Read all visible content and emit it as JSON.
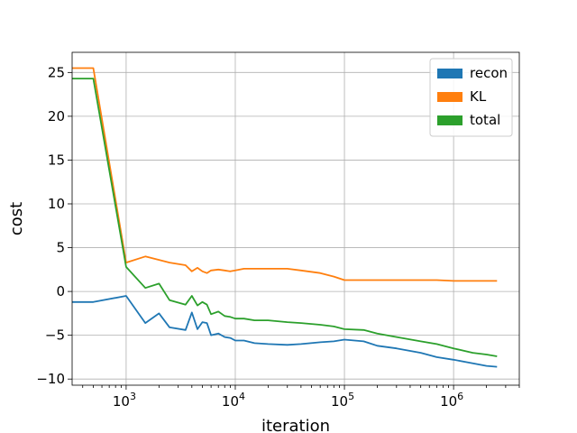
{
  "chart_data": {
    "type": "line",
    "title": "",
    "xlabel": "iteration",
    "ylabel": "cost",
    "x_scale": "log",
    "xlim": [
      320,
      4000000
    ],
    "ylim": [
      -10.7,
      27.3
    ],
    "grid": true,
    "legend_position": "top-right",
    "x_ticks": [
      {
        "value": 1000,
        "base": "10",
        "exp": "3"
      },
      {
        "value": 10000,
        "base": "10",
        "exp": "4"
      },
      {
        "value": 100000,
        "base": "10",
        "exp": "5"
      },
      {
        "value": 1000000,
        "base": "10",
        "exp": "6"
      }
    ],
    "y_ticks": [
      {
        "value": -10,
        "label": "−10"
      },
      {
        "value": -5,
        "label": "−5"
      },
      {
        "value": 0,
        "label": "0"
      },
      {
        "value": 5,
        "label": "5"
      },
      {
        "value": 10,
        "label": "10"
      },
      {
        "value": 15,
        "label": "15"
      },
      {
        "value": 20,
        "label": "20"
      },
      {
        "value": 25,
        "label": "25"
      }
    ],
    "series": [
      {
        "name": "recon",
        "color": "#1f77b4",
        "x": [
          300,
          500,
          1000,
          1500,
          2000,
          2500,
          3500,
          4000,
          4500,
          5000,
          5500,
          6000,
          7000,
          8000,
          9000,
          10000,
          12000,
          15000,
          20000,
          30000,
          40000,
          60000,
          80000,
          100000,
          150000,
          200000,
          300000,
          500000,
          700000,
          1000000,
          1500000,
          2000000,
          2500000
        ],
        "y": [
          -1.2,
          -1.2,
          -0.5,
          -3.6,
          -2.5,
          -4.1,
          -4.4,
          -2.4,
          -4.3,
          -3.5,
          -3.6,
          -5.0,
          -4.8,
          -5.2,
          -5.3,
          -5.6,
          -5.6,
          -5.9,
          -6.0,
          -6.1,
          -6.0,
          -5.8,
          -5.7,
          -5.5,
          -5.7,
          -6.2,
          -6.5,
          -7.0,
          -7.5,
          -7.8,
          -8.2,
          -8.5,
          -8.6
        ]
      },
      {
        "name": "KL",
        "color": "#ff7f0e",
        "x": [
          300,
          500,
          1000,
          1500,
          2000,
          2500,
          3500,
          4000,
          4500,
          5000,
          5500,
          6000,
          7000,
          8000,
          9000,
          10000,
          12000,
          15000,
          20000,
          30000,
          40000,
          60000,
          80000,
          100000,
          150000,
          200000,
          300000,
          500000,
          700000,
          1000000,
          1500000,
          2000000,
          2500000
        ],
        "y": [
          25.5,
          25.5,
          3.3,
          4.0,
          3.6,
          3.3,
          3.0,
          2.3,
          2.7,
          2.3,
          2.1,
          2.4,
          2.5,
          2.4,
          2.3,
          2.4,
          2.6,
          2.6,
          2.6,
          2.6,
          2.4,
          2.1,
          1.7,
          1.3,
          1.3,
          1.3,
          1.3,
          1.3,
          1.3,
          1.2,
          1.2,
          1.2,
          1.2
        ]
      },
      {
        "name": "total",
        "color": "#2ca02c",
        "x": [
          300,
          500,
          1000,
          1500,
          2000,
          2500,
          3500,
          4000,
          4500,
          5000,
          5500,
          6000,
          7000,
          8000,
          9000,
          10000,
          12000,
          15000,
          20000,
          30000,
          40000,
          60000,
          80000,
          100000,
          150000,
          200000,
          300000,
          500000,
          700000,
          1000000,
          1500000,
          2000000,
          2500000
        ],
        "y": [
          24.3,
          24.3,
          2.8,
          0.4,
          0.9,
          -1.0,
          -1.5,
          -0.5,
          -1.6,
          -1.2,
          -1.5,
          -2.6,
          -2.3,
          -2.8,
          -2.9,
          -3.1,
          -3.1,
          -3.3,
          -3.3,
          -3.5,
          -3.6,
          -3.8,
          -4.0,
          -4.3,
          -4.4,
          -4.8,
          -5.2,
          -5.7,
          -6.0,
          -6.5,
          -7.0,
          -7.2,
          -7.4
        ]
      }
    ]
  }
}
